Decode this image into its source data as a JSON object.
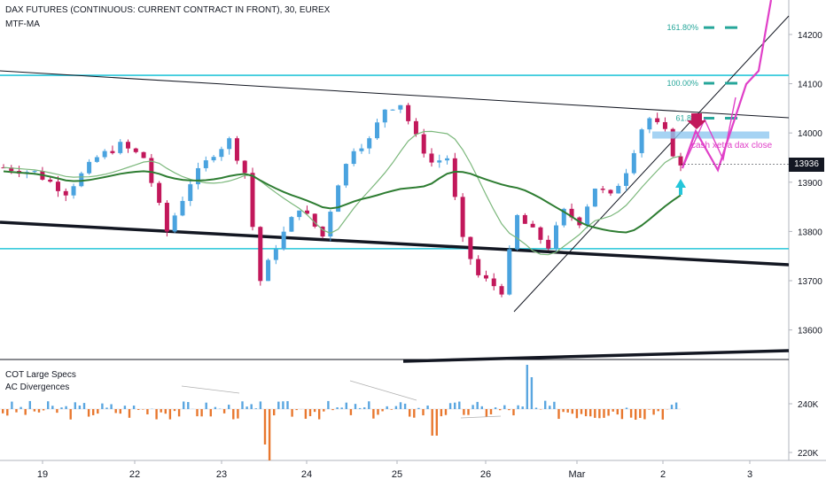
{
  "header": {
    "title": "DAX FUTURES (CONTINUOUS: CURRENT CONTRACT IN FRONT), 30, EUREX",
    "indicator": "MTF-MA"
  },
  "lower_pane": {
    "label1": "COT Large Specs",
    "label2": "AC Divergences"
  },
  "annotation": {
    "text": "cash xetra dax close"
  },
  "current_price": {
    "label": "13936",
    "color": "#131722"
  },
  "colors": {
    "up": "#4aa3df",
    "down": "#c2185b",
    "hist_up": "#5aa6e0",
    "hist_down": "#e8772e",
    "cyan": "#26c6da",
    "ma_dark": "#2e7d32",
    "ma_light": "#7cb87c",
    "pink": "#e040c8",
    "fib": "#26a69a"
  },
  "chart_data": [
    {
      "type": "candlestick",
      "title": "DAX FUTURES (CONTINUOUS: CURRENT CONTRACT IN FRONT), 30, EUREX",
      "x_ticks": [
        "19",
        "22",
        "23",
        "24",
        "25",
        "26",
        "Mar",
        "2",
        "3"
      ],
      "y_ticks": [
        13600,
        13700,
        13800,
        13900,
        14000,
        14100,
        14200
      ],
      "ylim": [
        13540,
        14270
      ],
      "last_price": 13936,
      "price_path": [
        [
          0,
          13930
        ],
        [
          4,
          13920
        ],
        [
          8,
          13880
        ],
        [
          12,
          13950
        ],
        [
          15,
          13975
        ],
        [
          18,
          13950
        ],
        [
          20,
          13850
        ],
        [
          21,
          13800
        ],
        [
          24,
          13900
        ],
        [
          27,
          13960
        ],
        [
          29,
          13985
        ],
        [
          31,
          13920
        ],
        [
          33,
          13700
        ],
        [
          35,
          13770
        ],
        [
          38,
          13850
        ],
        [
          41,
          13790
        ],
        [
          43,
          13900
        ],
        [
          45,
          13970
        ],
        [
          47,
          13985
        ],
        [
          49,
          14050
        ],
        [
          51,
          14060
        ],
        [
          53,
          13990
        ],
        [
          55,
          13940
        ],
        [
          57,
          13950
        ],
        [
          59,
          13780
        ],
        [
          61,
          13710
        ],
        [
          64,
          13680
        ],
        [
          66,
          13830
        ],
        [
          68,
          13800
        ],
        [
          70,
          13770
        ],
        [
          72,
          13840
        ],
        [
          74,
          13820
        ],
        [
          76,
          13890
        ],
        [
          78,
          13870
        ],
        [
          80,
          13925
        ],
        [
          82,
          14010
        ],
        [
          83,
          14030
        ],
        [
          85,
          14000
        ],
        [
          86,
          13960
        ],
        [
          87,
          13930
        ]
      ],
      "fib_levels": [
        {
          "label": "161.80%",
          "price": 14214
        },
        {
          "label": "100.00%",
          "price": 14101
        },
        {
          "label": "61.8%",
          "price": 14030
        }
      ],
      "horizontal_levels": [
        14117,
        13765
      ]
    },
    {
      "type": "bar",
      "title": "COT Large Specs",
      "series": [
        {
          "name": "AC Divergences"
        }
      ],
      "y_ticks": [
        "240K",
        "220K"
      ]
    }
  ]
}
